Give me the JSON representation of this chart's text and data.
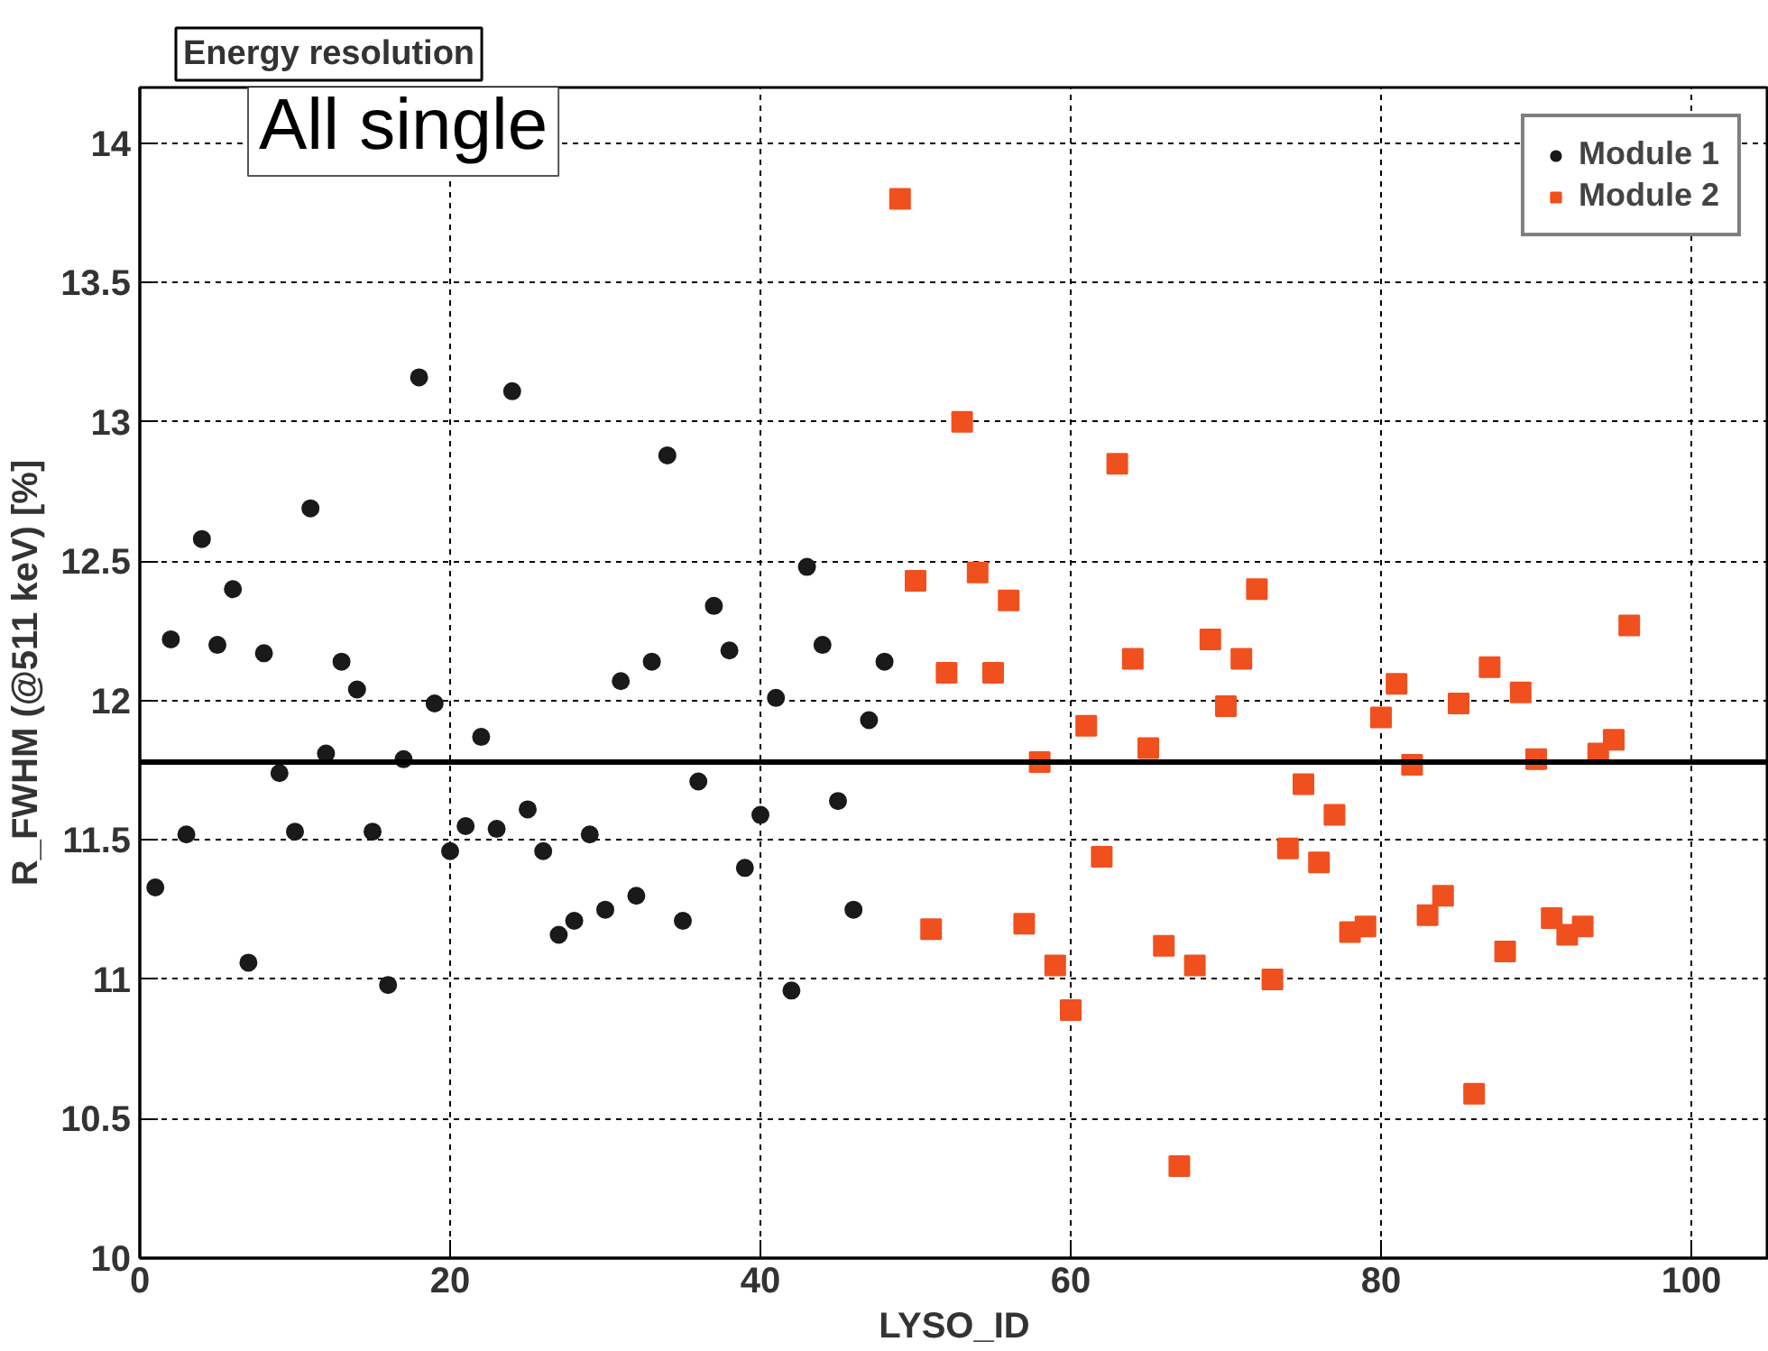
{
  "chart_data": {
    "type": "scatter",
    "title": "Energy resolution",
    "xlabel": "LYSO_ID",
    "ylabel": "R_FWHM (@511 keV) [%]",
    "annotations": [
      "All single"
    ],
    "xlim": [
      0,
      105
    ],
    "ylim": [
      10,
      14.2
    ],
    "xticks": [
      0,
      20,
      40,
      60,
      80,
      100
    ],
    "yticks": [
      10,
      10.5,
      11,
      11.5,
      12,
      12.5,
      13,
      13.5,
      14
    ],
    "grid": true,
    "legend": "top right",
    "ref_lines": [
      {
        "axis": "y",
        "value": 11.78,
        "color": "#000000",
        "line_style": "solid"
      }
    ],
    "series": [
      {
        "name": "Module 1",
        "color": "#1a1a1a",
        "marker": "circle",
        "x": [
          1,
          2,
          3,
          4,
          5,
          6,
          7,
          8,
          9,
          10,
          11,
          12,
          13,
          14,
          15,
          16,
          17,
          18,
          19,
          20,
          21,
          22,
          23,
          24,
          25,
          26,
          27,
          28,
          29,
          30,
          31,
          32,
          33,
          34,
          35,
          36,
          37,
          38,
          39,
          40,
          41,
          42,
          43,
          44,
          45,
          46,
          47,
          48
        ],
        "values": [
          11.33,
          12.22,
          11.52,
          12.58,
          12.2,
          12.4,
          11.06,
          12.17,
          11.74,
          11.53,
          12.69,
          11.81,
          12.14,
          12.04,
          11.53,
          10.98,
          11.79,
          13.16,
          11.99,
          11.46,
          11.55,
          11.87,
          11.54,
          13.11,
          11.61,
          11.46,
          11.16,
          11.21,
          11.52,
          11.25,
          12.07,
          11.3,
          12.14,
          12.88,
          11.21,
          11.71,
          12.34,
          12.18,
          11.4,
          11.59,
          12.01,
          10.96,
          12.48,
          12.2,
          11.64,
          11.25,
          11.93,
          12.14
        ]
      },
      {
        "name": "Module 2",
        "color": "#f0501e",
        "marker": "square",
        "x": [
          49,
          50,
          51,
          52,
          53,
          54,
          55,
          56,
          57,
          58,
          59,
          60,
          61,
          62,
          63,
          64,
          65,
          66,
          67,
          68,
          69,
          70,
          71,
          72,
          73,
          74,
          75,
          76,
          77,
          78,
          79,
          80,
          81,
          82,
          83,
          84,
          85,
          86,
          87,
          88,
          89,
          90,
          91,
          92,
          93,
          94,
          95,
          96
        ],
        "values": [
          13.8,
          12.43,
          11.18,
          12.1,
          13.0,
          12.46,
          12.1,
          12.36,
          11.2,
          11.78,
          11.05,
          10.89,
          11.91,
          11.44,
          12.85,
          12.15,
          11.83,
          11.12,
          10.33,
          11.05,
          12.22,
          11.98,
          12.15,
          12.4,
          11.0,
          11.47,
          11.7,
          11.42,
          11.59,
          11.17,
          11.19,
          11.94,
          12.06,
          11.77,
          11.23,
          11.3,
          11.99,
          10.59,
          12.12,
          11.1,
          12.03,
          11.79,
          11.22,
          11.16,
          11.19,
          11.81,
          11.86,
          12.27
        ]
      }
    ]
  }
}
